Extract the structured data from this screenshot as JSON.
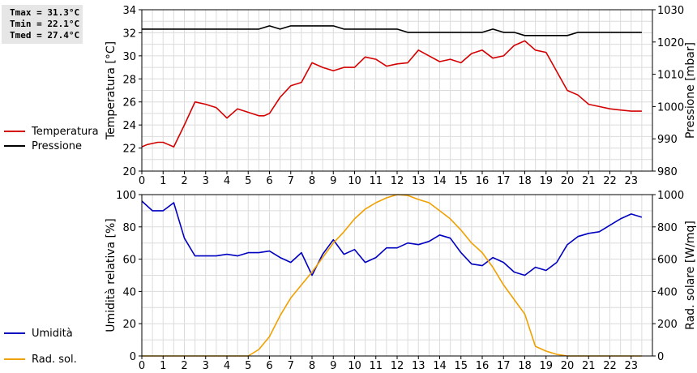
{
  "stats": {
    "tmax": "Tmax = 31.3°C",
    "tmin": "Tmin = 22.1°C",
    "tmed": "Tmed = 27.4°C"
  },
  "legend_top": [
    {
      "label": "Temperatura",
      "color": "#d40000"
    },
    {
      "label": "Pressione",
      "color": "#000000"
    }
  ],
  "legend_bottom": [
    {
      "label": "Umidità",
      "color": "#0000c0"
    },
    {
      "label": "Rad. sol.",
      "color": "#f0a000"
    }
  ],
  "chart_data": [
    {
      "type": "line",
      "ylabel_left": "Temperatura [°C]",
      "ylabel_right": "Pressione [mbar]",
      "ylim_left": [
        20,
        34
      ],
      "ylim_right": [
        980,
        1030
      ],
      "xlim": [
        0,
        24
      ],
      "xticks": [
        "0",
        "1",
        "2",
        "3",
        "4",
        "5",
        "6",
        "7",
        "8",
        "9",
        "10",
        "11",
        "12",
        "13",
        "14",
        "15",
        "16",
        "17",
        "18",
        "19",
        "20",
        "21",
        "22",
        "23"
      ],
      "yticks_left": [
        "20",
        "22",
        "24",
        "26",
        "28",
        "30",
        "32",
        "34"
      ],
      "yticks_right": [
        "980",
        "990",
        "1000",
        "1010",
        "1020",
        "1030"
      ],
      "grid": true,
      "series": [
        {
          "name": "Temperatura",
          "axis": "left",
          "color": "#d40000",
          "x": [
            0,
            0.25,
            0.5,
            0.75,
            1,
            1.25,
            1.5,
            2,
            2.5,
            3,
            3.5,
            4,
            4.5,
            5,
            5.5,
            5.75,
            6,
            6.5,
            7,
            7.5,
            8,
            8.5,
            9,
            9.5,
            10,
            10.5,
            11,
            11.5,
            12,
            12.5,
            13,
            13.5,
            14,
            14.5,
            15,
            15.5,
            16,
            16.5,
            17,
            17.5,
            18,
            18.5,
            19,
            20,
            20.5,
            21,
            21.5,
            22,
            22.5,
            23,
            23.25,
            23.5
          ],
          "y": [
            22.1,
            22.3,
            22.4,
            22.5,
            22.5,
            22.3,
            22.1,
            24.0,
            26.0,
            25.8,
            25.5,
            24.6,
            25.4,
            25.1,
            24.8,
            24.8,
            25.0,
            26.4,
            27.4,
            27.7,
            29.4,
            29.0,
            28.7,
            29.0,
            29.0,
            29.9,
            29.7,
            29.1,
            29.3,
            29.4,
            30.5,
            30.0,
            29.5,
            29.7,
            29.4,
            30.2,
            30.5,
            29.8,
            30.0,
            30.9,
            31.3,
            30.5,
            30.3,
            27.0,
            26.6,
            25.8,
            25.6,
            25.4,
            25.3,
            25.2,
            25.2,
            25.2
          ]
        },
        {
          "name": "Pressione",
          "axis": "right",
          "color": "#000000",
          "x": [
            0,
            5.5,
            6,
            6.5,
            7,
            8,
            9,
            9.5,
            10,
            11,
            12,
            12.5,
            13,
            14,
            15,
            16,
            16.5,
            17,
            17.5,
            18,
            19,
            20,
            20.5,
            21,
            22,
            23,
            23.5
          ],
          "y": [
            1024,
            1024,
            1025,
            1024,
            1025,
            1025,
            1025,
            1024,
            1024,
            1024,
            1024,
            1023,
            1023,
            1023,
            1023,
            1023,
            1024,
            1023,
            1023,
            1022,
            1022,
            1022,
            1023,
            1023,
            1023,
            1023,
            1023
          ]
        }
      ]
    },
    {
      "type": "line",
      "ylabel_left": "Umidità relativa [%]",
      "ylabel_right": "Rad. solare [W/mq]",
      "ylim_left": [
        0,
        100
      ],
      "ylim_right": [
        0,
        1000
      ],
      "xlim": [
        0,
        24
      ],
      "xticks": [
        "0",
        "1",
        "2",
        "3",
        "4",
        "5",
        "6",
        "7",
        "8",
        "9",
        "10",
        "11",
        "12",
        "13",
        "14",
        "15",
        "16",
        "17",
        "18",
        "19",
        "20",
        "21",
        "22",
        "23"
      ],
      "yticks_left": [
        "0",
        "20",
        "40",
        "60",
        "80",
        "100"
      ],
      "yticks_right": [
        "0",
        "200",
        "400",
        "600",
        "800",
        "1000"
      ],
      "grid": true,
      "series": [
        {
          "name": "Umidità",
          "axis": "left",
          "color": "#0000c0",
          "x": [
            0,
            0.5,
            1,
            1.5,
            2,
            2.5,
            3,
            3.5,
            4,
            4.5,
            5,
            5.5,
            6,
            6.5,
            7,
            7.5,
            8,
            8.5,
            9,
            9.5,
            10,
            10.5,
            11,
            11.5,
            12,
            12.5,
            13,
            13.5,
            14,
            14.5,
            15,
            15.5,
            16,
            16.5,
            17,
            17.5,
            18,
            18.5,
            19,
            19.5,
            20,
            20.5,
            21,
            21.5,
            22,
            22.5,
            23,
            23.5
          ],
          "y": [
            96,
            90,
            90,
            95,
            73,
            62,
            62,
            62,
            63,
            62,
            64,
            64,
            65,
            61,
            58,
            64,
            50,
            63,
            72,
            63,
            66,
            58,
            61,
            67,
            67,
            70,
            69,
            71,
            75,
            73,
            64,
            57,
            56,
            61,
            58,
            52,
            50,
            55,
            53,
            58,
            69,
            74,
            76,
            77,
            81,
            85,
            88,
            86
          ]
        },
        {
          "name": "Rad. sol.",
          "axis": "right",
          "color": "#f0a000",
          "x": [
            0,
            5,
            5.5,
            6,
            6.5,
            7,
            7.5,
            8,
            8.5,
            9,
            9.5,
            10,
            10.5,
            11,
            11.5,
            12,
            12.5,
            13,
            13.5,
            14,
            14.5,
            15,
            15.5,
            16,
            16.5,
            17,
            17.5,
            18,
            18.5,
            19,
            19.5,
            20,
            20.5,
            21,
            22,
            23,
            23.5
          ],
          "y": [
            0,
            0,
            40,
            120,
            250,
            360,
            440,
            520,
            610,
            700,
            770,
            850,
            910,
            950,
            980,
            1000,
            995,
            970,
            950,
            900,
            850,
            780,
            700,
            640,
            550,
            440,
            350,
            260,
            60,
            30,
            10,
            0,
            0,
            0,
            0,
            0,
            0
          ]
        }
      ]
    }
  ]
}
